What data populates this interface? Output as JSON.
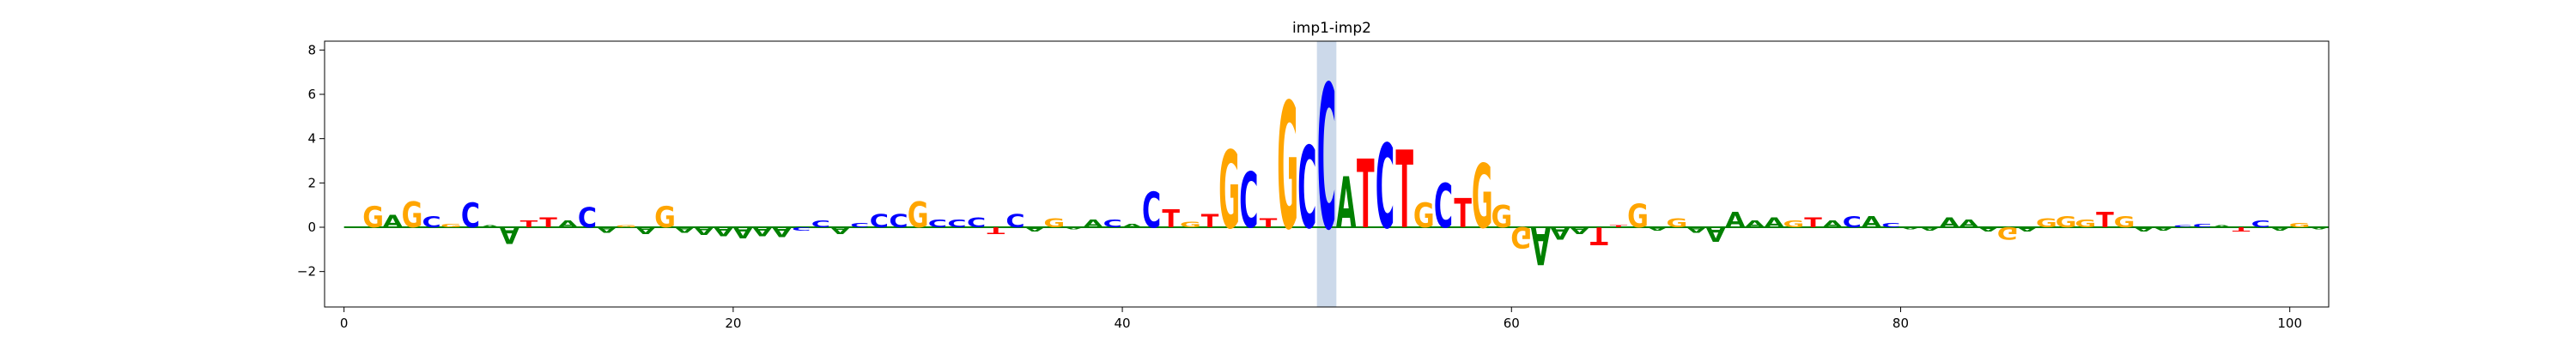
{
  "chart_data": {
    "type": "sequence-logo",
    "title": "imp1-imp2",
    "xlabel": "",
    "ylabel": "",
    "xlim": [
      -1,
      102
    ],
    "ylim": [
      -3.6,
      8.4
    ],
    "x_ticks": [
      0,
      20,
      40,
      60,
      80,
      100
    ],
    "y_ticks": [
      -2,
      0,
      2,
      4,
      6,
      8
    ],
    "highlight": {
      "x_start": 50,
      "x_end": 51,
      "color": "#ccd9ea"
    },
    "baseline": {
      "y": 0,
      "color": "#008000"
    },
    "letter_colors": {
      "A": "#008000",
      "C": "#0000ff",
      "G": "#ffa500",
      "T": "#ff0000"
    },
    "letters": [
      {
        "x": 1.5,
        "base": "G",
        "value": 0.95
      },
      {
        "x": 2.5,
        "base": "A",
        "value": 0.55
      },
      {
        "x": 3.5,
        "base": "G",
        "value": 1.15
      },
      {
        "x": 4.5,
        "base": "C",
        "value": 0.5
      },
      {
        "x": 5.5,
        "base": "G",
        "value": 0.15
      },
      {
        "x": 6.5,
        "base": "C",
        "value": 1.1
      },
      {
        "x": 7.5,
        "base": "A",
        "value": 0.1
      },
      {
        "x": 8.5,
        "base": "A",
        "value": -0.75
      },
      {
        "x": 9.5,
        "base": "T",
        "value": 0.3
      },
      {
        "x": 10.5,
        "base": "T",
        "value": 0.45
      },
      {
        "x": 11.5,
        "base": "A",
        "value": 0.3
      },
      {
        "x": 12.5,
        "base": "C",
        "value": 0.9
      },
      {
        "x": 13.5,
        "base": "A",
        "value": -0.25
      },
      {
        "x": 14.5,
        "base": "G",
        "value": 0.1
      },
      {
        "x": 15.5,
        "base": "A",
        "value": -0.3
      },
      {
        "x": 16.5,
        "base": "G",
        "value": 0.95
      },
      {
        "x": 17.5,
        "base": "A",
        "value": -0.25
      },
      {
        "x": 18.5,
        "base": "A",
        "value": -0.35
      },
      {
        "x": 19.5,
        "base": "A",
        "value": -0.4
      },
      {
        "x": 20.5,
        "base": "A",
        "value": -0.5
      },
      {
        "x": 21.5,
        "base": "A",
        "value": -0.4
      },
      {
        "x": 22.5,
        "base": "A",
        "value": -0.45
      },
      {
        "x": 23.5,
        "base": "C",
        "value": -0.15
      },
      {
        "x": 24.5,
        "base": "C",
        "value": 0.3
      },
      {
        "x": 25.5,
        "base": "A",
        "value": -0.3
      },
      {
        "x": 26.5,
        "base": "C",
        "value": 0.2
      },
      {
        "x": 27.5,
        "base": "C",
        "value": 0.6
      },
      {
        "x": 28.5,
        "base": "C",
        "value": 0.6
      },
      {
        "x": 29.5,
        "base": "G",
        "value": 1.15
      },
      {
        "x": 30.5,
        "base": "C",
        "value": 0.35
      },
      {
        "x": 31.5,
        "base": "C",
        "value": 0.35
      },
      {
        "x": 32.5,
        "base": "C",
        "value": 0.45
      },
      {
        "x": 33.5,
        "base": "T",
        "value": -0.3
      },
      {
        "x": 34.5,
        "base": "C",
        "value": 0.6
      },
      {
        "x": 35.5,
        "base": "A",
        "value": -0.2
      },
      {
        "x": 36.5,
        "base": "G",
        "value": 0.4
      },
      {
        "x": 37.5,
        "base": "A",
        "value": -0.1
      },
      {
        "x": 38.5,
        "base": "A",
        "value": 0.35
      },
      {
        "x": 39.5,
        "base": "C",
        "value": 0.35
      },
      {
        "x": 40.5,
        "base": "A",
        "value": 0.15
      },
      {
        "x": 41.5,
        "base": "C",
        "value": 1.6
      },
      {
        "x": 42.5,
        "base": "T",
        "value": 0.8
      },
      {
        "x": 43.5,
        "base": "G",
        "value": 0.25
      },
      {
        "x": 44.5,
        "base": "T",
        "value": 0.6
      },
      {
        "x": 45.5,
        "base": "G",
        "value": 3.5
      },
      {
        "x": 46.5,
        "base": "C",
        "value": 2.5
      },
      {
        "x": 47.5,
        "base": "T",
        "value": 0.4
      },
      {
        "x": 48.5,
        "base": "G",
        "value": 5.7
      },
      {
        "x": 49.5,
        "base": "C",
        "value": 3.7
      },
      {
        "x": 50.5,
        "base": "C",
        "value": 6.5
      },
      {
        "x": 51.5,
        "base": "A",
        "value": 2.3
      },
      {
        "x": 52.5,
        "base": "T",
        "value": 3.1
      },
      {
        "x": 53.5,
        "base": "C",
        "value": 3.8
      },
      {
        "x": 54.5,
        "base": "T",
        "value": 3.5
      },
      {
        "x": 55.5,
        "base": "G",
        "value": 1.1
      },
      {
        "x": 56.5,
        "base": "C",
        "value": 2.0
      },
      {
        "x": 57.5,
        "base": "T",
        "value": 1.3
      },
      {
        "x": 58.5,
        "base": "G",
        "value": 2.9
      },
      {
        "x": 59.5,
        "base": "G",
        "value": 1.0
      },
      {
        "x": 60.5,
        "base": "G",
        "value": -0.95
      },
      {
        "x": 61.5,
        "base": "A",
        "value": -1.7
      },
      {
        "x": 62.5,
        "base": "A",
        "value": -0.55
      },
      {
        "x": 63.5,
        "base": "A",
        "value": -0.3
      },
      {
        "x": 64.5,
        "base": "T",
        "value": -0.8
      },
      {
        "x": 65.5,
        "base": "T",
        "value": 0.1
      },
      {
        "x": 66.5,
        "base": "G",
        "value": 1.05
      },
      {
        "x": 67.5,
        "base": "A",
        "value": -0.15
      },
      {
        "x": 68.5,
        "base": "G",
        "value": 0.4
      },
      {
        "x": 69.5,
        "base": "A",
        "value": -0.25
      },
      {
        "x": 70.5,
        "base": "A",
        "value": -0.65
      },
      {
        "x": 71.5,
        "base": "A",
        "value": 0.7
      },
      {
        "x": 72.5,
        "base": "A",
        "value": 0.3
      },
      {
        "x": 73.5,
        "base": "A",
        "value": 0.45
      },
      {
        "x": 74.5,
        "base": "G",
        "value": 0.3
      },
      {
        "x": 75.5,
        "base": "T",
        "value": 0.45
      },
      {
        "x": 76.5,
        "base": "A",
        "value": 0.3
      },
      {
        "x": 77.5,
        "base": "C",
        "value": 0.5
      },
      {
        "x": 78.5,
        "base": "A",
        "value": 0.5
      },
      {
        "x": 79.5,
        "base": "C",
        "value": 0.2
      },
      {
        "x": 80.5,
        "base": "A",
        "value": -0.1
      },
      {
        "x": 81.5,
        "base": "A",
        "value": -0.15
      },
      {
        "x": 82.5,
        "base": "A",
        "value": 0.45
      },
      {
        "x": 83.5,
        "base": "A",
        "value": 0.35
      },
      {
        "x": 84.5,
        "base": "A",
        "value": -0.2
      },
      {
        "x": 85.5,
        "base": "G",
        "value": -0.55
      },
      {
        "x": 86.5,
        "base": "A",
        "value": -0.2
      },
      {
        "x": 87.5,
        "base": "G",
        "value": 0.4
      },
      {
        "x": 88.5,
        "base": "G",
        "value": 0.5
      },
      {
        "x": 89.5,
        "base": "G",
        "value": 0.35
      },
      {
        "x": 90.5,
        "base": "T",
        "value": 0.7
      },
      {
        "x": 91.5,
        "base": "G",
        "value": 0.5
      },
      {
        "x": 92.5,
        "base": "A",
        "value": -0.2
      },
      {
        "x": 93.5,
        "base": "A",
        "value": -0.15
      },
      {
        "x": 94.5,
        "base": "C",
        "value": 0.1
      },
      {
        "x": 95.5,
        "base": "C",
        "value": 0.15
      },
      {
        "x": 96.5,
        "base": "A",
        "value": 0.1
      },
      {
        "x": 97.5,
        "base": "T",
        "value": -0.2
      },
      {
        "x": 98.5,
        "base": "C",
        "value": 0.3
      },
      {
        "x": 99.5,
        "base": "A",
        "value": -0.15
      },
      {
        "x": 100.5,
        "base": "G",
        "value": 0.2
      },
      {
        "x": 101.5,
        "base": "A",
        "value": -0.1
      }
    ]
  }
}
